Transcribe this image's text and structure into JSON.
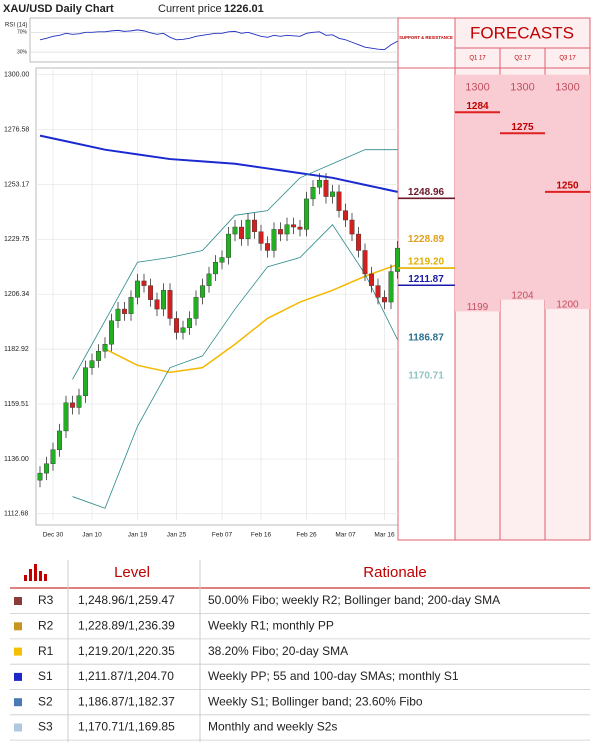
{
  "chart_data": {
    "type": "candlestick",
    "title": "XAU/USD Daily Chart",
    "current_price_label": "Current price",
    "current_price": 1226.01,
    "categories": [
      null,
      null,
      "Dec 30",
      null,
      null,
      null,
      null,
      null,
      "Jan 10",
      null,
      null,
      null,
      null,
      null,
      null,
      "Jan 19",
      null,
      null,
      null,
      null,
      null,
      "Jan 25",
      null,
      null,
      null,
      null,
      null,
      null,
      "Feb 07",
      null,
      null,
      null,
      null,
      null,
      "Feb 16",
      null,
      null,
      null,
      null,
      null,
      null,
      "Feb 26",
      null,
      null,
      null,
      null,
      null,
      "Mar 07",
      null,
      null,
      null,
      null,
      null,
      "Mar 16",
      null,
      null
    ],
    "open": [
      1127,
      1130,
      1134,
      1140,
      1148,
      1160,
      1158,
      1163,
      1175,
      1178,
      1182,
      1185,
      1195,
      1200,
      1198,
      1205,
      1212,
      1210,
      1204,
      1200,
      1208,
      1196,
      1190,
      1192,
      1196,
      1205,
      1210,
      1215,
      1220,
      1222,
      1232,
      1235,
      1230,
      1238,
      1233,
      1228,
      1225,
      1234,
      1232,
      1236,
      1235,
      1234,
      1247,
      1252,
      1255,
      1248,
      1250,
      1242,
      1238,
      1232,
      1225,
      1215,
      1210,
      1205,
      1203,
      1216
    ],
    "high": [
      1133,
      1137,
      1143,
      1151,
      1163,
      1163,
      1166,
      1178,
      1181,
      1185,
      1188,
      1198,
      1203,
      1203,
      1208,
      1215,
      1215,
      1213,
      1207,
      1211,
      1211,
      1199,
      1195,
      1199,
      1208,
      1213,
      1218,
      1223,
      1225,
      1235,
      1238,
      1238,
      1241,
      1241,
      1236,
      1231,
      1237,
      1237,
      1239,
      1239,
      1238,
      1250,
      1255,
      1258,
      1258,
      1253,
      1253,
      1245,
      1241,
      1235,
      1228,
      1218,
      1213,
      1208,
      1219,
      1229
    ],
    "low": [
      1124,
      1127,
      1131,
      1137,
      1145,
      1155,
      1155,
      1160,
      1172,
      1175,
      1179,
      1182,
      1192,
      1195,
      1195,
      1202,
      1207,
      1201,
      1197,
      1197,
      1193,
      1187,
      1187,
      1189,
      1193,
      1202,
      1207,
      1212,
      1217,
      1219,
      1229,
      1227,
      1227,
      1230,
      1225,
      1222,
      1222,
      1229,
      1229,
      1232,
      1231,
      1231,
      1244,
      1249,
      1245,
      1245,
      1239,
      1235,
      1229,
      1222,
      1212,
      1207,
      1202,
      1200,
      1200,
      1213
    ],
    "close": [
      1130,
      1134,
      1140,
      1148,
      1160,
      1158,
      1163,
      1175,
      1178,
      1182,
      1185,
      1195,
      1200,
      1198,
      1205,
      1212,
      1210,
      1204,
      1200,
      1208,
      1196,
      1190,
      1192,
      1196,
      1205,
      1210,
      1215,
      1220,
      1222,
      1232,
      1235,
      1230,
      1238,
      1233,
      1228,
      1225,
      1234,
      1232,
      1236,
      1235,
      1234,
      1247,
      1252,
      1255,
      1248,
      1250,
      1242,
      1238,
      1232,
      1225,
      1215,
      1210,
      1205,
      1203,
      1216,
      1226
    ],
    "up_color": "#22b022",
    "down_color": "#d02020",
    "overlays": [
      {
        "color": "#1a2ad0",
        "width": 2,
        "x": [
          0,
          5,
          10,
          15,
          20,
          25,
          30,
          35,
          40,
          45,
          50,
          55
        ],
        "values": [
          1274,
          1271,
          1268,
          1266,
          1264,
          1263,
          1262,
          1260,
          1258,
          1256,
          1253,
          1250
        ]
      },
      {
        "color": "#f5b800",
        "width": 1.5,
        "x": [
          0,
          5,
          10,
          15,
          20,
          25,
          30,
          35,
          40,
          45,
          50,
          55
        ],
        "values": [
          null,
          null,
          1183,
          1176,
          1173,
          1175,
          1185,
          1196,
          1203,
          1208,
          1214,
          1219
        ]
      },
      {
        "color": "#2a8a8a",
        "width": 0.8,
        "x": [
          5,
          10,
          15,
          20,
          25,
          30,
          35,
          40,
          45,
          50,
          55
        ],
        "values": [
          1170,
          1195,
          1220,
          1222,
          1225,
          1240,
          1242,
          1256,
          1262,
          1268,
          1268
        ]
      },
      {
        "color": "#2a8a8a",
        "width": 0.8,
        "x": [
          5,
          10,
          15,
          20,
          25,
          30,
          35,
          40,
          45,
          50,
          55
        ],
        "values": [
          1120,
          1115,
          1150,
          1175,
          1180,
          1200,
          1218,
          1222,
          1236,
          1215,
          1187
        ]
      }
    ],
    "ylim": [
      1110,
      1302
    ],
    "yticks": [
      {
        "value": 1300,
        "label": "1300.00"
      },
      1276.58,
      1253.17,
      1229.75,
      1206.34,
      1182.92,
      1159.51,
      {
        "value": 1136,
        "label": "1136.00"
      },
      1112.68
    ],
    "grid": true,
    "rsi": {
      "label": "RSI (14)",
      "color": "#2030c0",
      "ylim": [
        10,
        95
      ],
      "yticks": [
        {
          "value": 70,
          "label": "70%"
        },
        {
          "value": 30,
          "label": "30%"
        }
      ],
      "values": [
        55,
        58,
        62,
        64,
        68,
        66,
        67,
        70,
        70,
        71,
        71,
        73,
        74,
        72,
        73,
        75,
        73,
        69,
        66,
        68,
        60,
        55,
        56,
        58,
        62,
        64,
        66,
        68,
        68,
        71,
        72,
        68,
        70,
        66,
        62,
        60,
        64,
        62,
        64,
        63,
        62,
        68,
        70,
        71,
        64,
        65,
        58,
        55,
        50,
        45,
        40,
        38,
        36,
        35,
        45,
        52
      ]
    },
    "levels_title": "SUPPORT & RESISTANCE",
    "levels": [
      {
        "value": 1248.96,
        "color": "#6b1a2a",
        "line": true
      },
      {
        "value": 1228.89,
        "color": "#e0a020",
        "line": false
      },
      {
        "value": 1219.2,
        "label": "1219.20",
        "color": "#e0b000",
        "line": true
      },
      {
        "value": 1211.87,
        "color": "#1a1aaa",
        "line": true
      },
      {
        "value": 1186.87,
        "color": "#2a7090",
        "line": false
      },
      {
        "value": 1170.71,
        "color": "#90c4c4",
        "line": false
      }
    ],
    "forecasts": {
      "title": "FORECASTS",
      "quarters": [
        "Q1 17",
        "Q2 17",
        "Q3 17"
      ],
      "high": [
        1300,
        1300,
        1300
      ],
      "forecast": [
        1284,
        1275,
        1250
      ],
      "low": [
        1199,
        1204,
        1200
      ]
    }
  },
  "table": {
    "header": [
      "Level",
      "Rationale"
    ],
    "row_colors": [
      "#8b3a3a",
      "#c8961e",
      "#f5c000",
      "#1e28c8",
      "#4a7ab5",
      "#aec8e0"
    ],
    "rows": [
      [
        "R3",
        "1,248.96/1,259.47",
        "50.00% Fibo; weekly R2; Bollinger band; 200-day SMA"
      ],
      [
        "R2",
        "1,228.89/1,236.39",
        "Weekly R1; monthly PP"
      ],
      [
        "R1",
        "1,219.20/1,220.35",
        "38.20% Fibo; 20-day SMA"
      ],
      [
        "S1",
        "1,211.87/1,204.70",
        "Weekly PP; 55 and 100-day SMAs; monthly S1"
      ],
      [
        "S2",
        "1,186.87/1,182.37",
        "Weekly S1; Bollinger band; 23.60% Fibo"
      ],
      [
        "S3",
        "1,170.71/1,169.85",
        "Monthly and weekly S2s"
      ]
    ]
  }
}
